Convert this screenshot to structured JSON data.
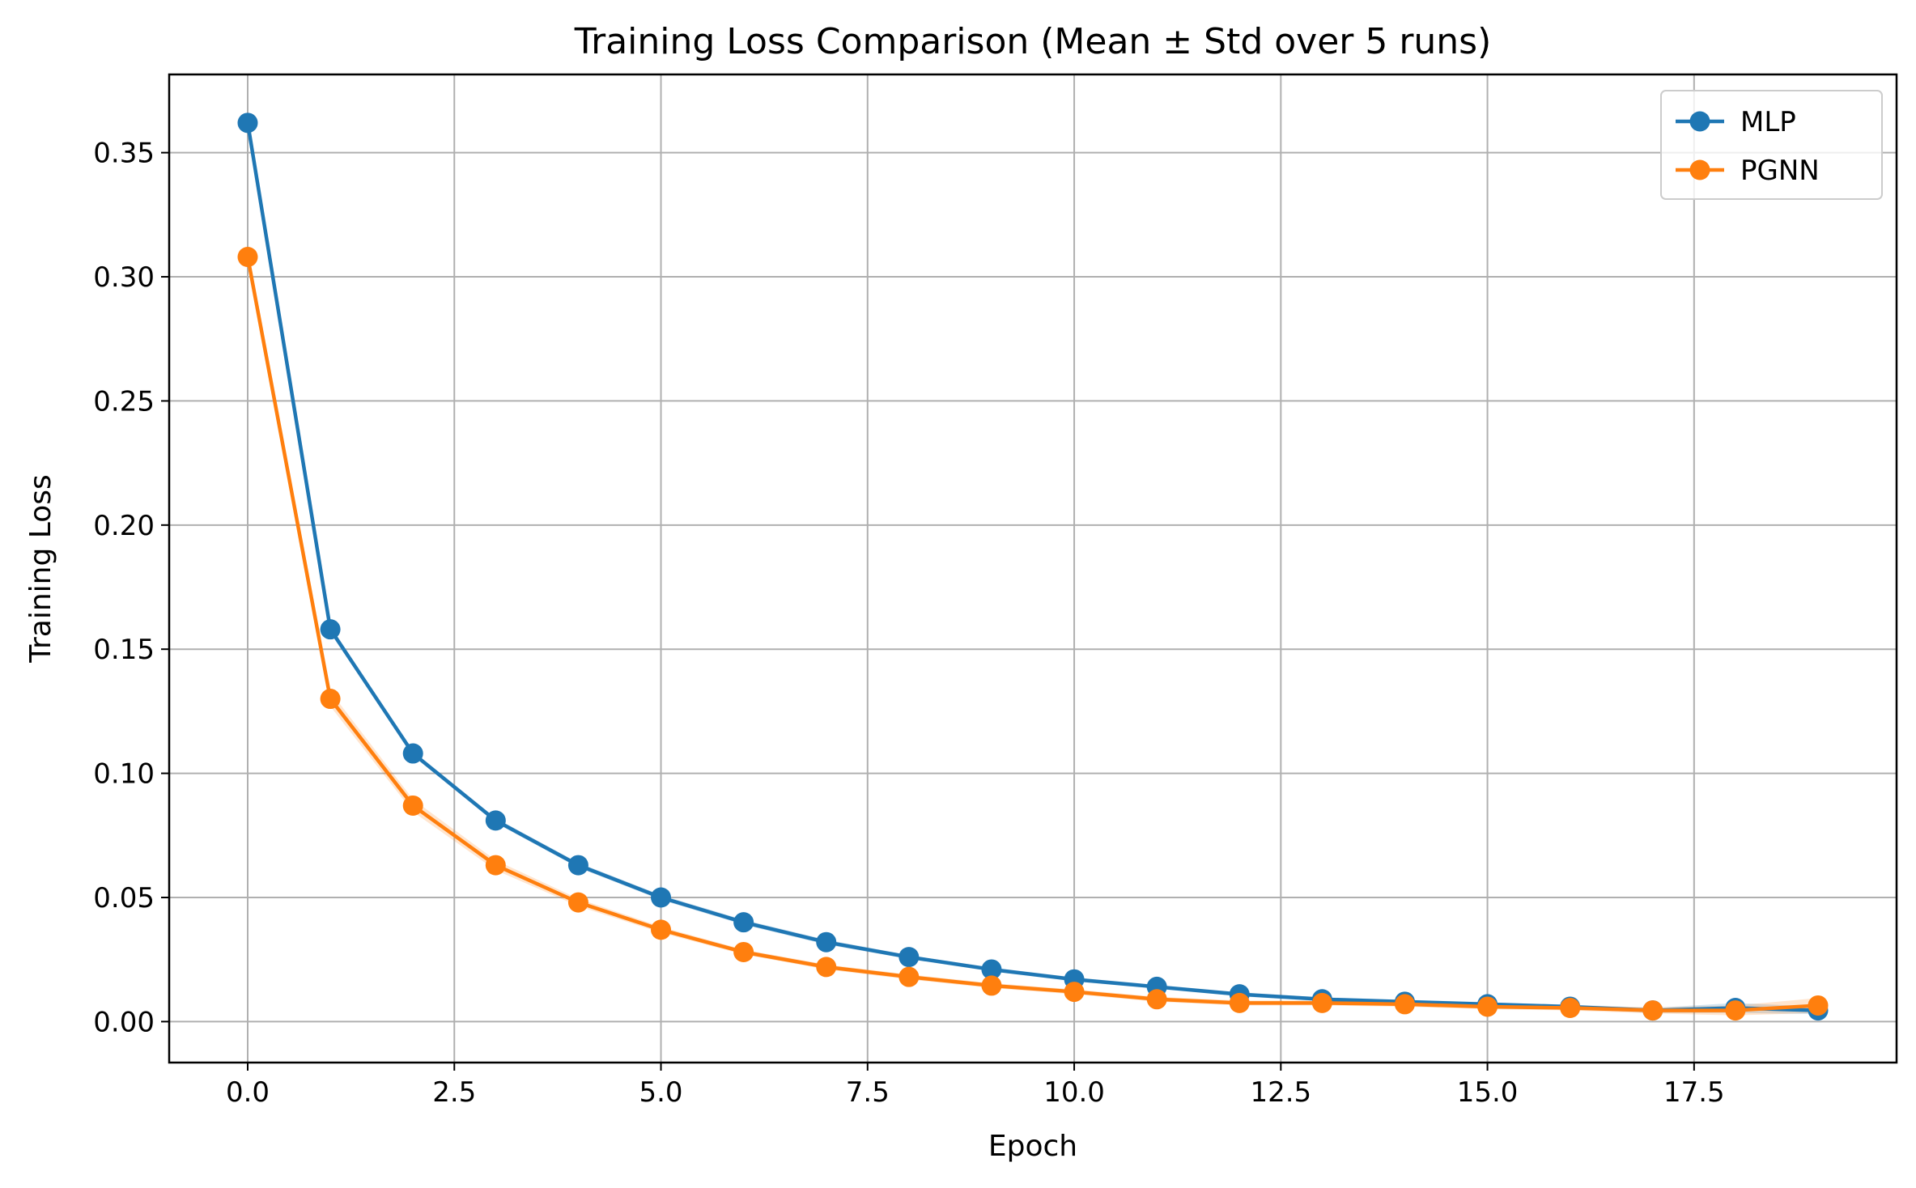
{
  "chart_data": {
    "type": "line",
    "title": "Training Loss Comparison (Mean ± Std over 5 runs)",
    "xlabel": "Epoch",
    "ylabel": "Training Loss",
    "xlim": [
      -0.95,
      19.95
    ],
    "ylim": [
      -0.0165,
      0.3815
    ],
    "xticks": [
      0.0,
      2.5,
      5.0,
      7.5,
      10.0,
      12.5,
      15.0,
      17.5
    ],
    "xtick_labels": [
      "0.0",
      "2.5",
      "5.0",
      "7.5",
      "10.0",
      "12.5",
      "15.0",
      "17.5"
    ],
    "yticks": [
      0.0,
      0.05,
      0.1,
      0.15,
      0.2,
      0.25,
      0.3,
      0.35
    ],
    "ytick_labels": [
      "0.00",
      "0.05",
      "0.10",
      "0.15",
      "0.20",
      "0.25",
      "0.30",
      "0.35"
    ],
    "grid": true,
    "legend_position": "top-right",
    "x": [
      0,
      1,
      2,
      3,
      4,
      5,
      6,
      7,
      8,
      9,
      10,
      11,
      12,
      13,
      14,
      15,
      16,
      17,
      18,
      19
    ],
    "series": [
      {
        "name": "MLP",
        "color": "#1f77b4",
        "values": [
          0.362,
          0.158,
          0.108,
          0.081,
          0.063,
          0.05,
          0.04,
          0.032,
          0.026,
          0.021,
          0.017,
          0.014,
          0.011,
          0.009,
          0.008,
          0.007,
          0.006,
          0.0045,
          0.0055,
          0.0045
        ],
        "std": [
          0.0015,
          0.0015,
          0.001,
          0.001,
          0.001,
          0.001,
          0.001,
          0.001,
          0.0008,
          0.0008,
          0.0008,
          0.0008,
          0.0008,
          0.0008,
          0.0008,
          0.0008,
          0.0008,
          0.001,
          0.002,
          0.0015
        ]
      },
      {
        "name": "PGNN",
        "color": "#ff7f0e",
        "values": [
          0.308,
          0.13,
          0.087,
          0.063,
          0.048,
          0.037,
          0.028,
          0.022,
          0.018,
          0.0145,
          0.012,
          0.009,
          0.0075,
          0.0075,
          0.007,
          0.006,
          0.0055,
          0.0045,
          0.0045,
          0.0065
        ],
        "std": [
          0.0015,
          0.003,
          0.0025,
          0.002,
          0.0015,
          0.0012,
          0.001,
          0.001,
          0.001,
          0.001,
          0.001,
          0.001,
          0.001,
          0.001,
          0.001,
          0.001,
          0.001,
          0.0012,
          0.002,
          0.003
        ]
      }
    ]
  }
}
